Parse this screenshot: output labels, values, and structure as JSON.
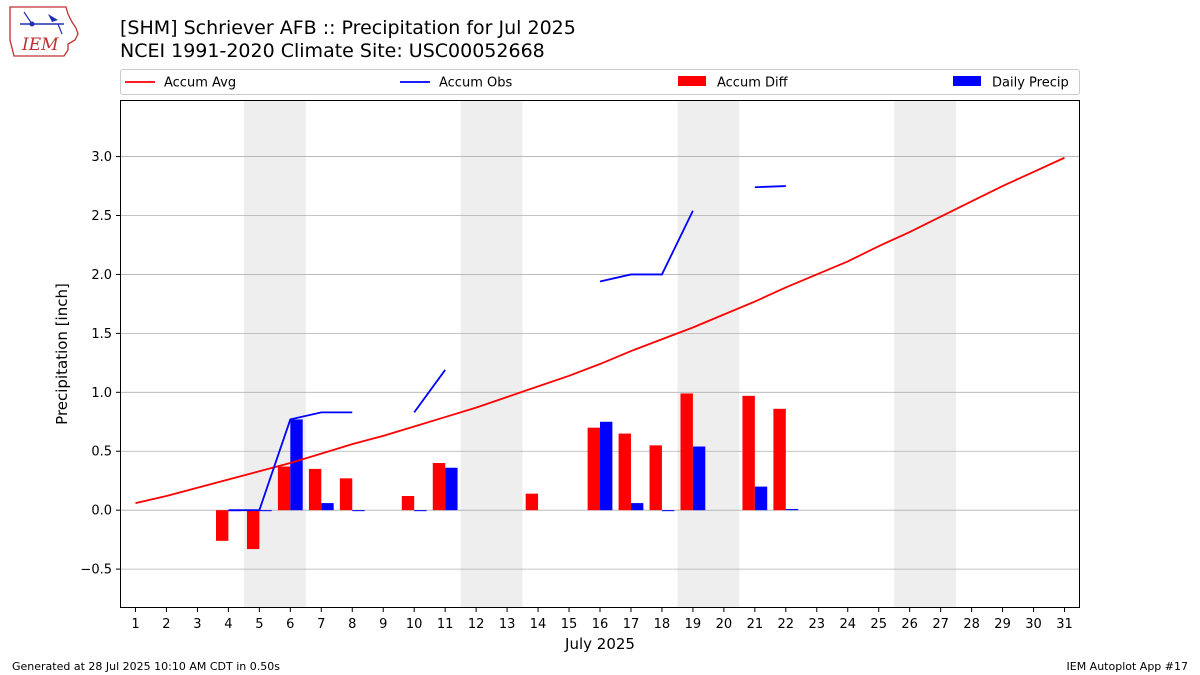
{
  "title_line1": "[SHM] Schriever AFB :: Precipitation for Jul 2025",
  "title_line2": "NCEI 1991-2020 Climate Site: USC00052668",
  "logo_text": "IEM",
  "footer_left": "Generated at 28 Jul 2025 10:10 AM CDT in 0.50s",
  "footer_right": "IEM Autoplot App #17",
  "colors": {
    "avg": "#ff0000",
    "obs": "#0000ff",
    "diff": "#ff0000",
    "daily": "#0000ff",
    "weekend": "#eeeeee",
    "grid": "#b0b0b0"
  },
  "chart_data": {
    "type": "bar",
    "xlabel": "July 2025",
    "ylabel": "Precipitation [inch]",
    "xlim": [
      0.5,
      31.5
    ],
    "ylim": [
      -0.83,
      3.48
    ],
    "yticks": [
      -0.5,
      0.0,
      0.5,
      1.0,
      1.5,
      2.0,
      2.5,
      3.0
    ],
    "ytick_labels": [
      "−0.5",
      "0.0",
      "0.5",
      "1.0",
      "1.5",
      "2.0",
      "2.5",
      "3.0"
    ],
    "days": [
      1,
      2,
      3,
      4,
      5,
      6,
      7,
      8,
      9,
      10,
      11,
      12,
      13,
      14,
      15,
      16,
      17,
      18,
      19,
      20,
      21,
      22,
      23,
      24,
      25,
      26,
      27,
      28,
      29,
      30,
      31
    ],
    "shaded_days": [
      [
        4.5,
        6.5
      ],
      [
        11.5,
        13.5
      ],
      [
        18.5,
        20.5
      ],
      [
        25.5,
        27.5
      ]
    ],
    "grid": true,
    "legend_position": "top",
    "series": [
      {
        "name": "Accum Avg",
        "kind": "line",
        "values": [
          0.06,
          0.12,
          0.19,
          0.26,
          0.33,
          0.4,
          0.48,
          0.56,
          0.63,
          0.71,
          0.79,
          0.87,
          0.96,
          1.05,
          1.14,
          1.24,
          1.35,
          1.45,
          1.55,
          1.66,
          1.77,
          1.89,
          2.0,
          2.11,
          2.24,
          2.36,
          2.49,
          2.62,
          2.75,
          2.87,
          2.99
        ]
      },
      {
        "name": "Accum Obs",
        "kind": "line",
        "values": [
          null,
          null,
          null,
          0.0,
          0.0,
          0.77,
          0.83,
          0.83,
          null,
          0.83,
          1.19,
          null,
          null,
          null,
          null,
          1.94,
          2.0,
          2.0,
          2.54,
          null,
          2.74,
          2.75,
          null,
          null,
          null,
          null,
          null,
          null,
          null,
          null,
          null
        ]
      },
      {
        "name": "Accum Diff",
        "kind": "bar",
        "values": [
          null,
          null,
          null,
          -0.26,
          -0.33,
          0.37,
          0.35,
          0.27,
          null,
          0.12,
          0.4,
          null,
          null,
          0.14,
          null,
          0.7,
          0.65,
          0.55,
          0.99,
          null,
          0.97,
          0.86,
          null,
          null,
          null,
          null,
          null,
          null,
          null,
          null,
          null
        ]
      },
      {
        "name": "Daily Precip",
        "kind": "bar",
        "values": [
          null,
          null,
          null,
          0.0,
          0.0,
          0.77,
          0.06,
          0.0,
          null,
          0.0,
          0.36,
          null,
          null,
          null,
          null,
          0.75,
          0.06,
          0.0,
          0.54,
          null,
          0.2,
          0.01,
          null,
          null,
          null,
          null,
          null,
          null,
          null,
          null,
          null
        ]
      }
    ]
  }
}
